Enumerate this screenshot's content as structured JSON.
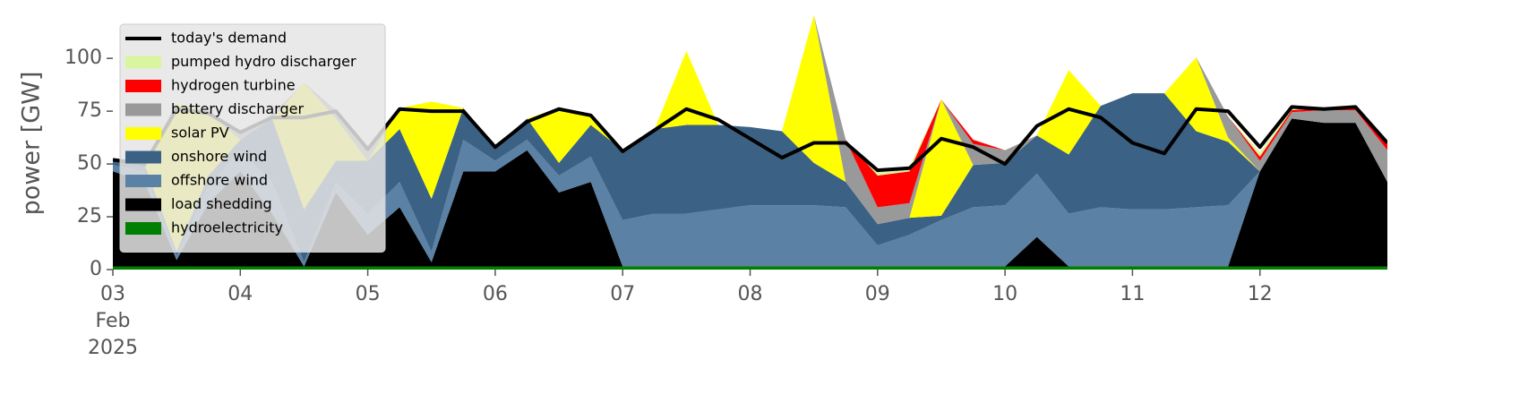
{
  "chart_data": {
    "type": "area",
    "stacked": true,
    "ylabel": "power [GW]",
    "x": [
      0,
      0.25,
      0.5,
      0.75,
      1,
      1.25,
      1.5,
      1.75,
      2,
      2.25,
      2.5,
      2.75,
      3,
      3.25,
      3.5,
      3.75,
      4,
      4.25,
      4.5,
      4.75,
      5,
      5.25,
      5.5,
      5.75,
      6,
      6.25,
      6.5,
      6.75,
      7,
      7.25,
      7.5,
      7.75,
      8,
      8.25,
      8.5,
      8.75,
      9,
      9.25,
      9.5,
      9.75,
      10
    ],
    "xlim": [
      0,
      10
    ],
    "xticks": [
      {
        "value": 0,
        "label": "03\nFeb\n2025"
      },
      {
        "value": 1,
        "label": "04"
      },
      {
        "value": 2,
        "label": "05"
      },
      {
        "value": 3,
        "label": "06"
      },
      {
        "value": 4,
        "label": "07"
      },
      {
        "value": 5,
        "label": "08"
      },
      {
        "value": 6,
        "label": "09"
      },
      {
        "value": 7,
        "label": "10"
      },
      {
        "value": 8,
        "label": "11"
      },
      {
        "value": 9,
        "label": "12"
      }
    ],
    "ylim": [
      0,
      120
    ],
    "yticks": [
      0,
      25,
      50,
      75,
      100
    ],
    "grid": false,
    "legend": "upper left",
    "series": [
      {
        "name": "hydroelectricity",
        "color": "#008000",
        "values": [
          1.5,
          1.5,
          1.5,
          1.5,
          1.5,
          1.5,
          1.5,
          1.5,
          1.5,
          1.5,
          1.5,
          1.5,
          1.5,
          1.5,
          1.5,
          1.5,
          1.5,
          1.5,
          1.5,
          1.5,
          1.5,
          1.5,
          1.5,
          1.5,
          1.5,
          1.5,
          1.5,
          1.5,
          1.5,
          1.5,
          1.5,
          1.5,
          1.5,
          1.5,
          1.5,
          1.5,
          1.5,
          1.5,
          1.5,
          1.5,
          1.5
        ]
      },
      {
        "name": "load shedding",
        "color": "#000000",
        "values": [
          45,
          40,
          3,
          30,
          45,
          25,
          0,
          35,
          15,
          28,
          2,
          45,
          45,
          55,
          35,
          40,
          0,
          0,
          0,
          0,
          0,
          0,
          0,
          0,
          0,
          0,
          0,
          0,
          0,
          14,
          0,
          0,
          0,
          0,
          0,
          0,
          45,
          70,
          68,
          68,
          40
        ]
      },
      {
        "name": "offshore wind",
        "color": "#5b81a5",
        "values": [
          3,
          5,
          2,
          8,
          10,
          15,
          2,
          5,
          10,
          12,
          5,
          15,
          5,
          5,
          8,
          12,
          22,
          25,
          25,
          27,
          29,
          29,
          29,
          28,
          10,
          15,
          22,
          28,
          29,
          30,
          25,
          28,
          27,
          27,
          28,
          29,
          0,
          0,
          0,
          0,
          0
        ]
      },
      {
        "name": "onshore wind",
        "color": "#3b6184",
        "values": [
          2,
          3,
          2,
          5,
          5,
          30,
          25,
          10,
          25,
          25,
          25,
          15,
          7,
          10,
          6,
          15,
          33,
          40,
          42,
          40,
          37,
          35,
          20,
          12,
          10,
          8,
          2,
          20,
          20,
          18,
          28,
          48,
          55,
          55,
          36,
          30,
          0,
          0,
          0,
          0,
          0
        ]
      },
      {
        "name": "solar PV",
        "color": "#ffff00",
        "values": [
          0,
          0,
          70,
          30,
          0,
          0,
          60,
          20,
          0,
          10,
          46,
          0,
          0,
          0,
          26,
          5,
          0,
          0,
          35,
          0,
          0,
          0,
          70,
          0,
          0,
          0,
          55,
          0,
          0,
          0,
          40,
          0,
          0,
          0,
          35,
          2,
          0,
          0,
          0,
          0,
          0
        ]
      },
      {
        "name": "battery discharger",
        "color": "#999999",
        "values": [
          0,
          2,
          0,
          0,
          3,
          2,
          0,
          4,
          6,
          0,
          0,
          0,
          0,
          0,
          0,
          0,
          0,
          0,
          0,
          0,
          0,
          0,
          0,
          20,
          8,
          7,
          0,
          10,
          6,
          0,
          0,
          0,
          0,
          0,
          0,
          10,
          5,
          3,
          6,
          6,
          15
        ]
      },
      {
        "name": "hydrogen turbine",
        "color": "#ff0000",
        "values": [
          0,
          0,
          0,
          0,
          0,
          0,
          0,
          0,
          0,
          0,
          0,
          0,
          0,
          0,
          0,
          0,
          0,
          0,
          0,
          0,
          0,
          0,
          0,
          0,
          15,
          15,
          0,
          2,
          0,
          0,
          0,
          0,
          0,
          0,
          0,
          0,
          2,
          1,
          1,
          2,
          4
        ]
      },
      {
        "name": "pumped hydro discharger",
        "color": "#d9f5a0",
        "values": [
          0,
          0,
          0,
          0,
          0,
          0,
          0,
          0,
          0,
          0,
          0,
          0,
          0,
          0,
          0,
          0,
          0,
          0,
          0,
          0,
          0,
          0,
          0,
          0,
          2,
          2,
          0,
          0,
          0,
          0,
          0,
          0,
          0,
          0,
          0,
          0,
          2,
          1,
          0,
          0,
          0
        ]
      },
      {
        "name": "today's demand",
        "color": "#000000",
        "type": "line",
        "values": [
          52,
          50,
          76,
          74,
          65,
          72,
          72,
          75,
          57,
          76,
          75,
          75,
          58,
          70,
          76,
          73,
          56,
          66,
          76,
          71,
          62,
          53,
          60,
          60,
          47,
          48,
          62,
          58,
          50,
          68,
          76,
          72,
          60,
          55,
          76,
          75,
          58,
          77,
          76,
          77,
          60
        ]
      }
    ]
  }
}
